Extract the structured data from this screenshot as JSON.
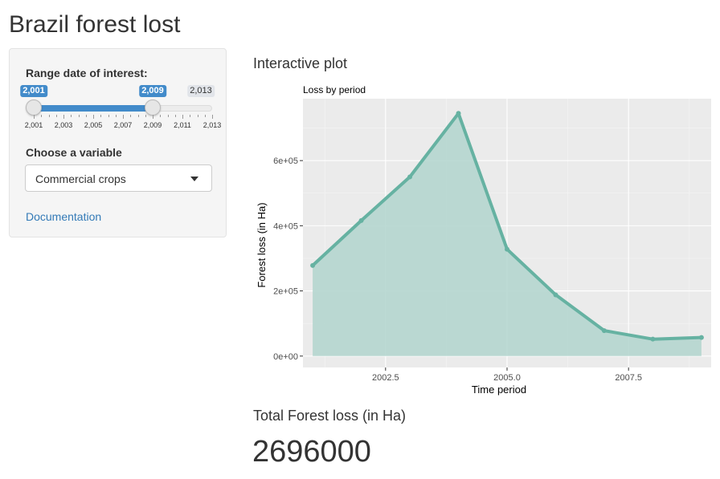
{
  "app": {
    "title": "Brazil forest lost"
  },
  "sidebar": {
    "range": {
      "label": "Range date of interest:",
      "min": 2001,
      "max": 2013,
      "from": 2001,
      "to": 2009,
      "from_label": "2,001",
      "to_label": "2,009",
      "max_label": "2,013",
      "tick_labels": [
        "2,001",
        "2,003",
        "2,005",
        "2,007",
        "2,009",
        "2,011",
        "2,013"
      ]
    },
    "variable": {
      "label": "Choose a variable",
      "selected": "Commercial crops"
    },
    "documentation_link": "Documentation"
  },
  "main": {
    "plot_heading": "Interactive plot",
    "total_heading": "Total Forest loss (in Ha)",
    "total_value": "2696000"
  },
  "colors": {
    "accent": "#428bca",
    "link": "#337ab7",
    "series_line": "#66b2a2",
    "series_fill": "#b5d6cf",
    "panel_bg": "#ebebeb"
  },
  "chart_data": {
    "type": "area",
    "title": "Loss by period",
    "xlabel": "Time period",
    "ylabel": "Forest loss (in Ha)",
    "x": [
      2001,
      2002,
      2003,
      2004,
      2005,
      2006,
      2007,
      2008,
      2009
    ],
    "series": [
      {
        "values": [
          278000,
          416000,
          550000,
          745000,
          328000,
          188000,
          78000,
          52000,
          57000
        ]
      }
    ],
    "xlim": [
      2000.8,
      2009.2
    ],
    "ylim": [
      -35000,
      790000
    ],
    "x_ticks": [
      2002.5,
      2005.0,
      2007.5
    ],
    "x_tick_labels": [
      "2002.5",
      "2005.0",
      "2007.5"
    ],
    "y_ticks": [
      0,
      200000,
      400000,
      600000
    ],
    "y_tick_labels": [
      "0e+00",
      "2e+05",
      "4e+05",
      "6e+05"
    ],
    "grid": true,
    "legend": "none"
  }
}
